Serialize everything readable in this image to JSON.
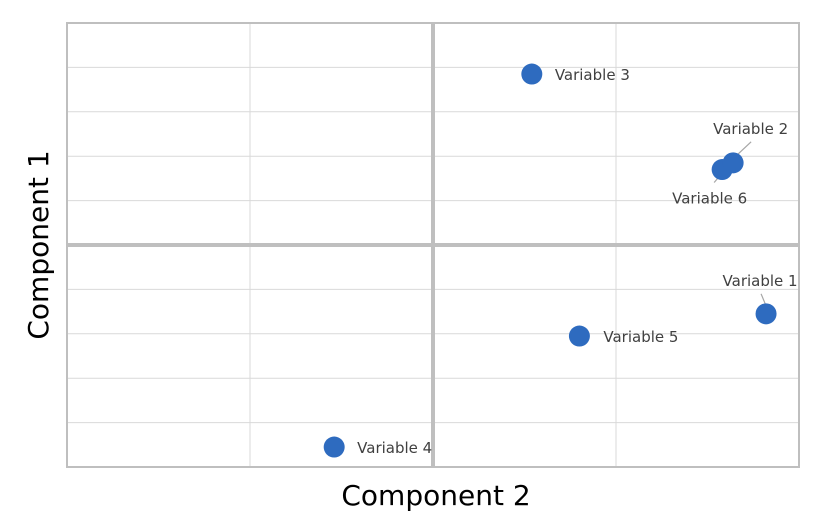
{
  "chart_data": {
    "type": "scatter",
    "title": "",
    "xlabel": "Component 2",
    "ylabel": "Component 1",
    "xlim": [
      -1,
      1
    ],
    "ylim": [
      -1,
      1
    ],
    "grid": true,
    "legend": "none",
    "colors": {
      "marker": "#2e6bbf",
      "grid": "#d9d9d9",
      "axes": "#bfbfbf",
      "leader": "#a6a6a6"
    },
    "points": [
      {
        "label": "Variable 1",
        "x": 0.91,
        "y": -0.31
      },
      {
        "label": "Variable 2",
        "x": 0.82,
        "y": 0.37
      },
      {
        "label": "Variable 3",
        "x": 0.27,
        "y": 0.77
      },
      {
        "label": "Variable 4",
        "x": -0.27,
        "y": -0.91
      },
      {
        "label": "Variable 5",
        "x": 0.4,
        "y": -0.41
      },
      {
        "label": "Variable 6",
        "x": 0.79,
        "y": 0.34
      }
    ]
  }
}
